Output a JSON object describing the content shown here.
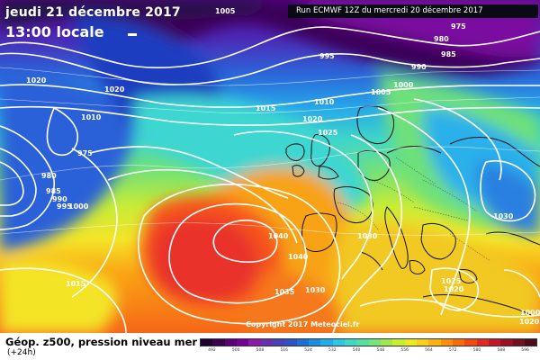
{
  "header": {
    "date": "jeudi 21 décembre 2017",
    "local_time": "13:00 locale",
    "run_info": "Run ECMWF 12Z du mercredi 20 décembre 2017"
  },
  "copyright": "Copyright 2017 Meteociel.fr",
  "footer": {
    "product": "Géop. z500, pression niveau mer",
    "lead": "(+24h)"
  },
  "isobar_labels": [
    "1005",
    "975",
    "980",
    "985",
    "990",
    "995",
    "1000",
    "1005",
    "1020",
    "1020",
    "1010",
    "1015",
    "1010",
    "1020",
    "1025",
    "975",
    "980",
    "985",
    "990",
    "995",
    "1000",
    "1040",
    "1030",
    "1040",
    "1030",
    "1035",
    "1015",
    "1025",
    "1020",
    "1030",
    "1020",
    "1000"
  ],
  "legend": {
    "ticks": [
      "492",
      "500",
      "508",
      "516",
      "524",
      "532",
      "540",
      "548",
      "556",
      "564",
      "572",
      "580",
      "588",
      "596"
    ],
    "colors": [
      "#20002e",
      "#3a0050",
      "#5a0077",
      "#760097",
      "#8a1aa8",
      "#6a2fb0",
      "#4a40b8",
      "#2d52c4",
      "#1e6fd2",
      "#1a8fe0",
      "#22acea",
      "#2fc6e6",
      "#3fd8c8",
      "#52e0a4",
      "#74e67a",
      "#9eea4e",
      "#c8ee2e",
      "#eaea22",
      "#f8d018",
      "#fbb10f",
      "#fb8f0b",
      "#f86a0c",
      "#f24a14",
      "#e02a20",
      "#c01828",
      "#9a1020",
      "#701020",
      "#4a0c18"
    ]
  },
  "map": {
    "region": "Europe / Atlantique Nord",
    "colors": {
      "deep_purple": "#3a0058",
      "purple": "#7a10a0",
      "blue_violet": "#4a30b8",
      "blue": "#2a60d8",
      "light_blue": "#2ab0ea",
      "cyan": "#3ed6d0",
      "green": "#6ee07a",
      "yellow_green": "#b8ec3a",
      "yellow": "#f2e828",
      "orange": "#fa9a10",
      "red_orange": "#f6521a",
      "red": "#e8302a"
    }
  }
}
